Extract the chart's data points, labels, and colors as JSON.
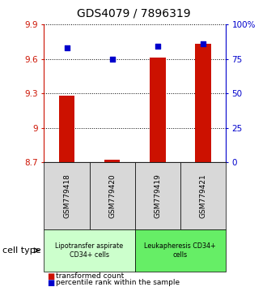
{
  "title": "GDS4079 / 7896319",
  "samples": [
    "GSM779418",
    "GSM779420",
    "GSM779419",
    "GSM779421"
  ],
  "transformed_counts": [
    9.28,
    8.72,
    9.61,
    9.73
  ],
  "percentile_ranks": [
    83,
    75,
    84,
    86
  ],
  "y_min": 8.7,
  "y_max": 9.9,
  "y_ticks": [
    8.7,
    9.0,
    9.3,
    9.6,
    9.9
  ],
  "y_tick_labels": [
    "8.7",
    "9",
    "9.3",
    "9.6",
    "9.9"
  ],
  "right_y_ticks": [
    0,
    25,
    50,
    75,
    100
  ],
  "right_y_tick_labels": [
    "0",
    "25",
    "50",
    "75",
    "100%"
  ],
  "bar_color": "#cc1100",
  "dot_color": "#0000cc",
  "bar_width": 0.35,
  "cell_type_groups": [
    {
      "label": "Lipotransfer aspirate\nCD34+ cells",
      "color": "#ccffcc",
      "samples": [
        0,
        1
      ]
    },
    {
      "label": "Leukapheresis CD34+\ncells",
      "color": "#66ee66",
      "samples": [
        2,
        3
      ]
    }
  ],
  "legend_bar_label": "transformed count",
  "legend_dot_label": "percentile rank within the sample",
  "bg_color": "#d8d8d8",
  "plot_bg": "#ffffff"
}
